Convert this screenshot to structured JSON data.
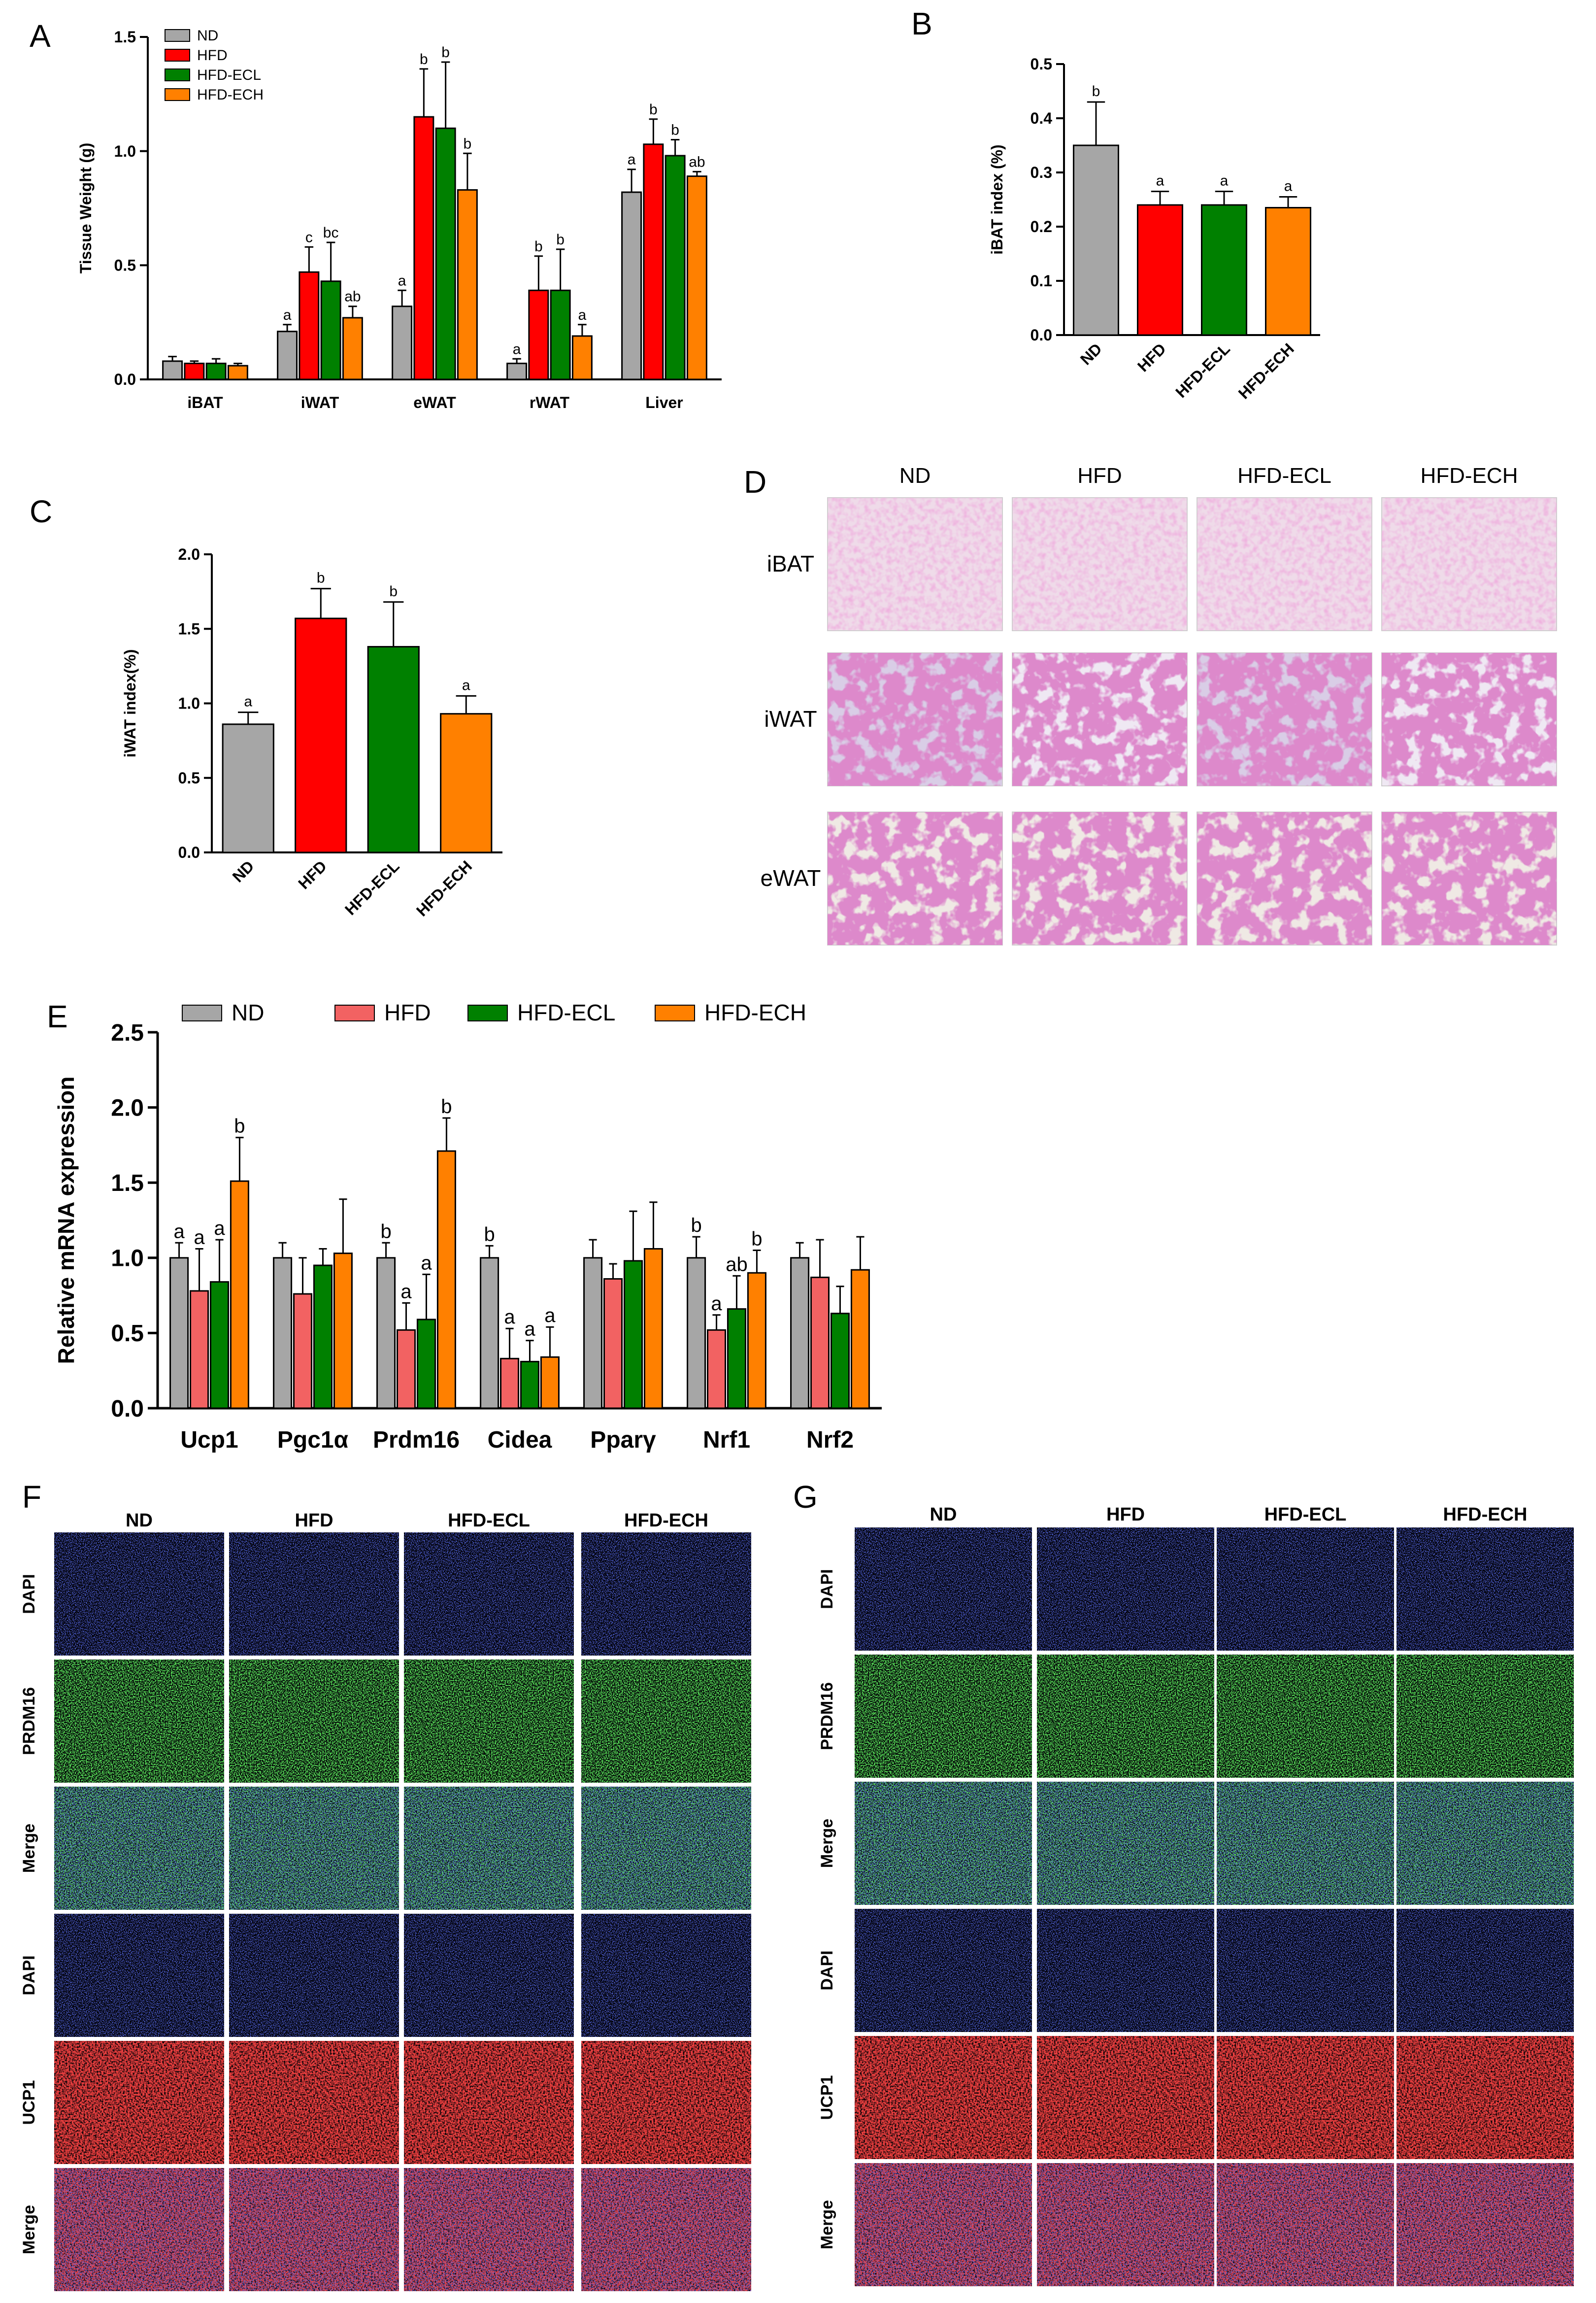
{
  "colors": {
    "ND": "#a6a6a6",
    "HFD": "#ff0000",
    "HFD-ECL": "#008000",
    "HFD-ECH": "#ff8000",
    "HFD_E": "#f26262"
  },
  "panel_letters": [
    "A",
    "B",
    "C",
    "D",
    "E",
    "F",
    "G"
  ],
  "groups": [
    "ND",
    "HFD",
    "HFD-ECL",
    "HFD-ECH"
  ],
  "chart_data": [
    {
      "panel": "A",
      "type": "bar",
      "ylabel": "Tissue Weight (g)",
      "ylim": [
        0,
        1.5
      ],
      "yticks": [
        "0.0",
        "0.5",
        "1.0",
        "1.5"
      ],
      "categories": [
        "iBAT",
        "iWAT",
        "eWAT",
        "rWAT",
        "Liver"
      ],
      "legend": "top-left",
      "series": [
        {
          "name": "ND",
          "values": [
            0.08,
            0.21,
            0.32,
            0.07,
            0.82
          ],
          "err": [
            0.02,
            0.03,
            0.07,
            0.02,
            0.1
          ],
          "labels": [
            "",
            "a",
            "a",
            "a",
            "a"
          ]
        },
        {
          "name": "HFD",
          "values": [
            0.07,
            0.47,
            1.15,
            0.39,
            1.03
          ],
          "err": [
            0.01,
            0.11,
            0.21,
            0.15,
            0.11
          ],
          "labels": [
            "",
            "c",
            "b",
            "b",
            "b"
          ]
        },
        {
          "name": "HFD-ECL",
          "values": [
            0.07,
            0.43,
            1.1,
            0.39,
            0.98
          ],
          "err": [
            0.02,
            0.17,
            0.29,
            0.18,
            0.07
          ],
          "labels": [
            "",
            "bc",
            "b",
            "b",
            "b"
          ]
        },
        {
          "name": "HFD-ECH",
          "values": [
            0.06,
            0.27,
            0.83,
            0.19,
            0.89
          ],
          "err": [
            0.01,
            0.05,
            0.16,
            0.05,
            0.02
          ],
          "labels": [
            "",
            "ab",
            "b",
            "a",
            "ab"
          ]
        }
      ]
    },
    {
      "panel": "B",
      "type": "bar",
      "ylabel": "iBAT index (%)",
      "ylim": [
        0,
        0.5
      ],
      "yticks": [
        "0.0",
        "0.1",
        "0.2",
        "0.3",
        "0.4",
        "0.5"
      ],
      "categories": [
        "ND",
        "HFD",
        "HFD-ECL",
        "HFD-ECH"
      ],
      "values": [
        0.35,
        0.24,
        0.24,
        0.235
      ],
      "err": [
        0.08,
        0.025,
        0.025,
        0.02
      ],
      "labels": [
        "b",
        "a",
        "a",
        "a"
      ]
    },
    {
      "panel": "C",
      "type": "bar",
      "ylabel": "iWAT index(%)",
      "ylim": [
        0,
        2.0
      ],
      "yticks": [
        "0.0",
        "0.5",
        "1.0",
        "1.5",
        "2.0"
      ],
      "categories": [
        "ND",
        "HFD",
        "HFD-ECL",
        "HFD-ECH"
      ],
      "values": [
        0.86,
        1.57,
        1.38,
        0.93
      ],
      "err": [
        0.08,
        0.2,
        0.3,
        0.12
      ],
      "labels": [
        "a",
        "b",
        "b",
        "a"
      ]
    },
    {
      "panel": "E",
      "type": "bar",
      "ylabel": "Relative mRNA expression",
      "ylim": [
        0,
        2.5
      ],
      "yticks": [
        "0.0",
        "0.5",
        "1.0",
        "1.5",
        "2.0",
        "2.5"
      ],
      "categories": [
        "Ucp1",
        "Pgc1α",
        "Prdm16",
        "Cidea",
        "Pparγ",
        "Nrf1",
        "Nrf2"
      ],
      "legend": "top",
      "series": [
        {
          "name": "ND",
          "values": [
            1.0,
            1.0,
            1.0,
            1.0,
            1.0,
            1.0,
            1.0
          ],
          "err": [
            0.1,
            0.1,
            0.1,
            0.08,
            0.12,
            0.14,
            0.1
          ],
          "labels": [
            "a",
            "",
            "b",
            "b",
            "",
            "b",
            ""
          ]
        },
        {
          "name": "HFD",
          "values": [
            0.78,
            0.76,
            0.52,
            0.33,
            0.86,
            0.52,
            0.87
          ],
          "err": [
            0.28,
            0.24,
            0.18,
            0.2,
            0.1,
            0.1,
            0.25
          ],
          "labels": [
            "a",
            "",
            "a",
            "a",
            "",
            "a",
            ""
          ]
        },
        {
          "name": "HFD-ECL",
          "values": [
            0.84,
            0.95,
            0.59,
            0.31,
            0.98,
            0.66,
            0.63
          ],
          "err": [
            0.28,
            0.11,
            0.3,
            0.14,
            0.33,
            0.22,
            0.18
          ],
          "labels": [
            "a",
            "",
            "a",
            "a",
            "",
            "ab",
            ""
          ]
        },
        {
          "name": "HFD-ECH",
          "values": [
            1.51,
            1.03,
            1.71,
            0.34,
            1.06,
            0.9,
            0.92
          ],
          "err": [
            0.29,
            0.36,
            0.22,
            0.2,
            0.31,
            0.15,
            0.22
          ],
          "labels": [
            "b",
            "",
            "b",
            "a",
            "",
            "b",
            ""
          ]
        }
      ]
    }
  ],
  "panel_D": {
    "columns": [
      "ND",
      "HFD",
      "HFD-ECL",
      "HFD-ECH"
    ],
    "rows": [
      "iBAT",
      "iWAT",
      "eWAT"
    ]
  },
  "panel_F": {
    "columns": [
      "ND",
      "HFD",
      "HFD-ECL",
      "HFD-ECH"
    ],
    "rows": [
      "DAPI",
      "PRDM16",
      "Merge",
      "DAPI",
      "UCP1",
      "Merge"
    ]
  },
  "panel_G": {
    "columns": [
      "ND",
      "HFD",
      "HFD-ECL",
      "HFD-ECH"
    ],
    "rows": [
      "DAPI",
      "PRDM16",
      "Merge",
      "DAPI",
      "UCP1",
      "Merge"
    ]
  }
}
